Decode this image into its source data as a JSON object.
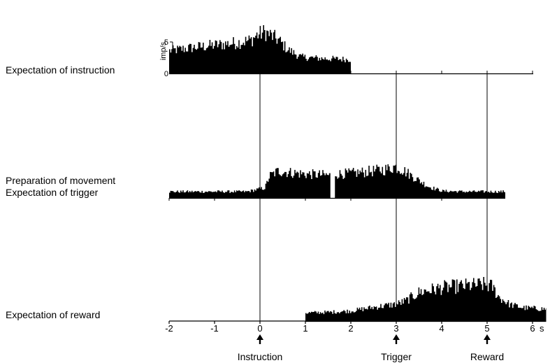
{
  "chart_data": {
    "type": "histogram",
    "x_axis": {
      "unit_label": "s",
      "range": [
        -2,
        6.3
      ],
      "ticks": [
        "-2",
        "-1",
        "0",
        "1",
        "2",
        "3",
        "4",
        "5",
        "6"
      ]
    },
    "y_axis": {
      "label": "imp/s",
      "range": [
        0,
        7
      ],
      "ticks": [
        "0",
        "5"
      ]
    },
    "events": [
      {
        "label": "Instruction",
        "time": 0
      },
      {
        "label": "Trigger",
        "time": 3
      },
      {
        "label": "Reward",
        "time": 5
      }
    ],
    "panels": [
      {
        "id": "instruction",
        "label_lines": [
          "Expectation of instruction"
        ],
        "segments": [
          {
            "x_start": -2.0,
            "x_end": 2.0,
            "points": [
              [
                -2.0,
                3.6
              ],
              [
                -1.5,
                4.1
              ],
              [
                -1.0,
                4.5
              ],
              [
                -0.5,
                4.9
              ],
              [
                -0.2,
                5.3
              ],
              [
                -0.1,
                6.0
              ],
              [
                0.1,
                6.6
              ],
              [
                0.4,
                5.3
              ],
              [
                0.6,
                3.8
              ],
              [
                0.9,
                2.6
              ],
              [
                1.3,
                2.4
              ],
              [
                1.7,
                2.3
              ],
              [
                2.0,
                2.2
              ]
            ]
          }
        ]
      },
      {
        "id": "movement",
        "label_lines": [
          "Preparation of movement",
          "Expectation of trigger"
        ],
        "segments": [
          {
            "x_start": -2.0,
            "x_end": 1.55,
            "points": [
              [
                -2.0,
                1.0
              ],
              [
                -1.0,
                1.0
              ],
              [
                -0.3,
                1.0
              ],
              [
                0.1,
                1.6
              ],
              [
                0.2,
                3.5
              ],
              [
                0.4,
                4.3
              ],
              [
                0.7,
                4.0
              ],
              [
                1.0,
                3.8
              ],
              [
                1.55,
                3.6
              ]
            ]
          },
          {
            "x_start": 1.65,
            "x_end": 5.4,
            "points": [
              [
                1.65,
                3.8
              ],
              [
                2.0,
                3.9
              ],
              [
                2.5,
                4.3
              ],
              [
                2.8,
                4.6
              ],
              [
                2.95,
                5.0
              ],
              [
                3.1,
                4.6
              ],
              [
                3.4,
                3.2
              ],
              [
                3.7,
                1.8
              ],
              [
                4.0,
                1.1
              ],
              [
                4.5,
                1.0
              ],
              [
                5.0,
                1.0
              ],
              [
                5.4,
                1.0
              ]
            ]
          }
        ]
      },
      {
        "id": "reward",
        "label_lines": [
          "Expectation of reward"
        ],
        "segments": [
          {
            "x_start": 1.0,
            "x_end": 6.3,
            "points": [
              [
                1.0,
                1.3
              ],
              [
                1.5,
                1.4
              ],
              [
                2.0,
                1.6
              ],
              [
                2.5,
                2.2
              ],
              [
                3.0,
                2.7
              ],
              [
                3.2,
                3.2
              ],
              [
                3.5,
                4.6
              ],
              [
                4.0,
                5.3
              ],
              [
                4.5,
                5.6
              ],
              [
                4.9,
                5.8
              ],
              [
                5.1,
                5.5
              ],
              [
                5.25,
                3.8
              ],
              [
                5.5,
                2.6
              ],
              [
                5.8,
                2.1
              ],
              [
                6.3,
                1.9
              ]
            ]
          }
        ]
      }
    ]
  }
}
